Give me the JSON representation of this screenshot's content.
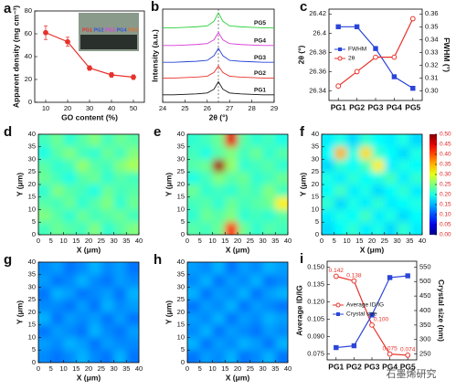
{
  "chart_data": [
    {
      "label": "a",
      "type": "line",
      "x": [
        10,
        20,
        30,
        40,
        50
      ],
      "values": [
        61,
        53,
        30,
        24,
        22
      ],
      "errors": [
        6,
        4,
        2,
        2,
        2
      ],
      "color": "#e8312a",
      "xlim": [
        5,
        55
      ],
      "xticks": [
        10,
        20,
        30,
        40,
        50
      ],
      "ylim": [
        0,
        80
      ],
      "yticks": [
        0,
        20,
        40,
        60,
        80
      ],
      "xlabel": "GO content (%)",
      "ylabel": "Apparent density (mg cm⁻³)",
      "inset_labels": [
        "PG1",
        "PG2",
        "PG3",
        "PG4",
        "PG5"
      ],
      "inset_colors": [
        "#e53030",
        "#3050e0",
        "#e040e0",
        "#3050e0",
        "#e07030"
      ]
    },
    {
      "label": "b",
      "type": "line",
      "x": [
        24,
        24.5,
        25,
        25.5,
        26,
        26.3,
        26.5,
        26.7,
        27,
        27.5,
        28,
        28.5,
        29
      ],
      "xlim": [
        24,
        29
      ],
      "xticks": [
        24,
        25,
        26,
        27,
        28,
        29
      ],
      "ylim": [
        0,
        100
      ],
      "reference_x": 26.5,
      "xlabel": "2θ (°)",
      "ylabel": "Intensity (a.u.)",
      "series": [
        {
          "name": "PG1",
          "color": "#111111",
          "values": [
            8,
            8,
            8.5,
            9,
            10,
            14,
            22,
            14,
            10,
            9,
            8.5,
            8,
            8
          ]
        },
        {
          "name": "PG2",
          "color": "#e8312a",
          "values": [
            26,
            26,
            26.5,
            27,
            28,
            32,
            39,
            32,
            28,
            27,
            26.5,
            26,
            26
          ]
        },
        {
          "name": "PG3",
          "color": "#2a45d8",
          "values": [
            43,
            43,
            43.5,
            44,
            45,
            50,
            58,
            50,
            45,
            44,
            43.5,
            43,
            43
          ]
        },
        {
          "name": "PG4",
          "color": "#d63ad6",
          "values": [
            61,
            61,
            61.5,
            62,
            63,
            67,
            75,
            67,
            63,
            62,
            61.5,
            61,
            61
          ]
        },
        {
          "name": "PG5",
          "color": "#2bd13a",
          "values": [
            80,
            80,
            80.5,
            81,
            82,
            87,
            96,
            87,
            82,
            81,
            80.5,
            80,
            80
          ]
        }
      ]
    },
    {
      "label": "c",
      "type": "line",
      "categories": [
        "PG1",
        "PG2",
        "PG3",
        "PG4",
        "PG5"
      ],
      "ylim": [
        26.33,
        26.425
      ],
      "yticks": [
        26.34,
        26.36,
        26.38,
        26.4,
        26.42
      ],
      "y2lim": [
        0.2925,
        0.36375
      ],
      "y2ticks": [
        {
          "value": 0.3,
          "label": "0.30"
        },
        0.31,
        0.32,
        0.33,
        0.34,
        0.35,
        {
          "value": 0.36,
          "label": "0.36"
        }
      ],
      "ylabel": "2θ (°)",
      "y2label": "FWHM (°)",
      "legend": "left",
      "series": [
        {
          "name": "FWHM",
          "color": "#2a45d8",
          "marker": "square",
          "axis": "y2",
          "values": [
            0.35,
            0.35,
            0.333,
            0.311,
            0.302
          ]
        },
        {
          "name": "2θ",
          "color": "#e8312a",
          "marker": "circle",
          "values": [
            26.345,
            26.36,
            26.375,
            26.375,
            26.415
          ]
        }
      ]
    },
    {
      "label": "d",
      "type": "heatmap",
      "xlim": [
        0,
        40
      ],
      "xticks": [
        0,
        5,
        10,
        15,
        20,
        25,
        30,
        35,
        40
      ],
      "ylim": [
        0,
        40
      ],
      "yticks": [
        0,
        5,
        10,
        15,
        20,
        25,
        30,
        35,
        40
      ],
      "xlabel": "X (μm)",
      "ylabel": "Y (μm)",
      "zlim": [
        0,
        0.5
      ],
      "z": [
        [
          0.22,
          0.24,
          0.21,
          0.23,
          0.25,
          0.22,
          0.24,
          0.23
        ],
        [
          0.2,
          0.23,
          0.25,
          0.22,
          0.21,
          0.24,
          0.22,
          0.25
        ],
        [
          0.23,
          0.21,
          0.22,
          0.26,
          0.23,
          0.22,
          0.25,
          0.27
        ],
        [
          0.24,
          0.22,
          0.2,
          0.23,
          0.24,
          0.21,
          0.23,
          0.22
        ],
        [
          0.21,
          0.25,
          0.23,
          0.22,
          0.2,
          0.24,
          0.22,
          0.23
        ],
        [
          0.23,
          0.22,
          0.24,
          0.21,
          0.23,
          0.25,
          0.21,
          0.24
        ],
        [
          0.25,
          0.23,
          0.21,
          0.24,
          0.22,
          0.23,
          0.24,
          0.22
        ],
        [
          0.22,
          0.24,
          0.23,
          0.22,
          0.25,
          0.21,
          0.23,
          0.25
        ]
      ]
    },
    {
      "label": "e",
      "type": "heatmap",
      "xlim": [
        0,
        40
      ],
      "xticks": [
        0,
        5,
        10,
        15,
        20,
        25,
        30,
        35,
        40
      ],
      "ylim": [
        0,
        40
      ],
      "yticks": [
        0,
        5,
        10,
        15,
        20,
        25,
        30,
        35,
        40
      ],
      "xlabel": "X (μm)",
      "ylabel": "Y (μm)",
      "zlim": [
        0,
        0.5
      ],
      "z": [
        [
          0.21,
          0.22,
          0.24,
          0.45,
          0.23,
          0.21,
          0.22,
          0.2
        ],
        [
          0.22,
          0.2,
          0.23,
          0.25,
          0.22,
          0.24,
          0.21,
          0.23
        ],
        [
          0.23,
          0.24,
          0.48,
          0.26,
          0.21,
          0.22,
          0.23,
          0.21
        ],
        [
          0.2,
          0.22,
          0.25,
          0.23,
          0.24,
          0.21,
          0.22,
          0.24
        ],
        [
          0.24,
          0.21,
          0.22,
          0.21,
          0.23,
          0.22,
          0.25,
          0.22
        ],
        [
          0.22,
          0.23,
          0.21,
          0.24,
          0.22,
          0.23,
          0.24,
          0.32
        ],
        [
          0.21,
          0.24,
          0.23,
          0.25,
          0.21,
          0.22,
          0.21,
          0.23
        ],
        [
          0.23,
          0.22,
          0.24,
          0.42,
          0.24,
          0.21,
          0.23,
          0.22
        ]
      ]
    },
    {
      "label": "f",
      "type": "heatmap",
      "xlim": [
        0,
        40
      ],
      "xticks": [
        0,
        5,
        10,
        15,
        20,
        25,
        30,
        35,
        40
      ],
      "ylim": [
        0,
        40
      ],
      "yticks": [
        0,
        5,
        10,
        15,
        20,
        25,
        30,
        35,
        40
      ],
      "xlabel": "X (μm)",
      "ylabel": "Y (μm)",
      "zlim": [
        0,
        0.5
      ],
      "colorbar": {
        "ticks": [
          {
            "value": 0,
            "label": "0.00"
          },
          0.05,
          {
            "value": 0.1,
            "label": "0.10"
          },
          0.15,
          {
            "value": 0.2,
            "label": "0.20"
          },
          0.25,
          {
            "value": 0.3,
            "label": "0.30"
          },
          0.35,
          {
            "value": 0.4,
            "label": "0.40"
          },
          0.45,
          {
            "value": 0.5,
            "label": "0.50"
          }
        ]
      },
      "z": [
        [
          0.18,
          0.2,
          0.17,
          0.21,
          0.19,
          0.18,
          0.2,
          0.17
        ],
        [
          0.19,
          0.35,
          0.2,
          0.33,
          0.21,
          0.19,
          0.17,
          0.2
        ],
        [
          0.17,
          0.21,
          0.19,
          0.22,
          0.32,
          0.18,
          0.2,
          0.19
        ],
        [
          0.2,
          0.18,
          0.21,
          0.19,
          0.2,
          0.22,
          0.18,
          0.21
        ],
        [
          0.19,
          0.22,
          0.18,
          0.2,
          0.17,
          0.19,
          0.21,
          0.18
        ],
        [
          0.21,
          0.17,
          0.2,
          0.18,
          0.21,
          0.18,
          0.19,
          0.2
        ],
        [
          0.18,
          0.2,
          0.19,
          0.22,
          0.18,
          0.2,
          0.17,
          0.19
        ],
        [
          0.17,
          0.19,
          0.21,
          0.18,
          0.2,
          0.17,
          0.21,
          0.18
        ]
      ]
    },
    {
      "label": "g",
      "type": "heatmap",
      "xlim": [
        0,
        40
      ],
      "xticks": [
        0,
        5,
        10,
        15,
        20,
        25,
        30,
        35,
        40
      ],
      "ylim": [
        0,
        40
      ],
      "yticks": [
        0,
        5,
        10,
        15,
        20,
        25,
        30,
        35,
        40
      ],
      "xlabel": "X (μm)",
      "ylabel": "Y (μm)",
      "zlim": [
        0,
        0.5
      ],
      "z": [
        [
          0.13,
          0.14,
          0.12,
          0.13,
          0.15,
          0.13,
          0.14,
          0.12
        ],
        [
          0.14,
          0.12,
          0.13,
          0.15,
          0.13,
          0.12,
          0.14,
          0.13
        ],
        [
          0.12,
          0.15,
          0.14,
          0.12,
          0.13,
          0.14,
          0.12,
          0.15
        ],
        [
          0.13,
          0.13,
          0.12,
          0.14,
          0.12,
          0.15,
          0.13,
          0.14
        ],
        [
          0.15,
          0.12,
          0.14,
          0.13,
          0.14,
          0.12,
          0.14,
          0.12
        ],
        [
          0.12,
          0.14,
          0.13,
          0.12,
          0.15,
          0.13,
          0.12,
          0.14
        ],
        [
          0.14,
          0.13,
          0.15,
          0.14,
          0.12,
          0.14,
          0.13,
          0.13
        ],
        [
          0.13,
          0.12,
          0.13,
          0.15,
          0.13,
          0.12,
          0.15,
          0.12
        ]
      ]
    },
    {
      "label": "h",
      "type": "heatmap",
      "xlim": [
        0,
        40
      ],
      "xticks": [
        0,
        5,
        10,
        15,
        20,
        25,
        30,
        35,
        40
      ],
      "ylim": [
        0,
        40
      ],
      "yticks": [
        0,
        5,
        10,
        15,
        20,
        25,
        30,
        35,
        40
      ],
      "xlabel": "X (μm)",
      "ylabel": "Y (μm)",
      "zlim": [
        0,
        0.5
      ],
      "z": [
        [
          0.14,
          0.13,
          0.15,
          0.12,
          0.14,
          0.13,
          0.15,
          0.14
        ],
        [
          0.13,
          0.15,
          0.12,
          0.14,
          0.13,
          0.15,
          0.12,
          0.13
        ],
        [
          0.15,
          0.12,
          0.14,
          0.13,
          0.15,
          0.12,
          0.14,
          0.15
        ],
        [
          0.12,
          0.14,
          0.13,
          0.15,
          0.12,
          0.14,
          0.13,
          0.12
        ],
        [
          0.14,
          0.13,
          0.15,
          0.12,
          0.14,
          0.13,
          0.15,
          0.14
        ],
        [
          0.13,
          0.15,
          0.12,
          0.14,
          0.13,
          0.12,
          0.14,
          0.13
        ],
        [
          0.15,
          0.12,
          0.14,
          0.13,
          0.15,
          0.14,
          0.12,
          0.15
        ],
        [
          0.12,
          0.14,
          0.13,
          0.15,
          0.12,
          0.13,
          0.15,
          0.12
        ]
      ]
    },
    {
      "label": "i",
      "type": "line",
      "categories": [
        "PG1",
        "PG2",
        "PG3",
        "PG4",
        "PG5"
      ],
      "ylim": [
        0.07,
        0.155
      ],
      "yticks": [
        {
          "value": 0.075,
          "label": "0.075"
        },
        {
          "value": 0.09,
          "label": "0.090"
        },
        {
          "value": 0.105,
          "label": "0.105"
        },
        {
          "value": 0.12,
          "label": "0.120"
        },
        {
          "value": 0.135,
          "label": "0.135"
        },
        {
          "value": 0.15,
          "label": "0.150"
        }
      ],
      "y2lim": [
        230,
        570
      ],
      "y2ticks": [
        250,
        300,
        350,
        400,
        450,
        500,
        550
      ],
      "ylabel": "Average ID/IG",
      "y2label": "Crystal size (nm)",
      "legend": "left",
      "series": [
        {
          "name": "Average ID/IG",
          "color": "#e8312a",
          "marker": "circle",
          "values": [
            0.142,
            0.138,
            0.1,
            0.075,
            0.074
          ],
          "value_labels": [
            "0.142",
            "0.138",
            "0.100",
            "0.075",
            "0.074"
          ]
        },
        {
          "name": "Crystal size",
          "color": "#2a45d8",
          "marker": "square",
          "axis": "y2",
          "values": [
            272.3,
            278.6,
            384.7,
            513.6,
            519.6
          ]
        }
      ]
    }
  ],
  "watermark": "石墨烯研究"
}
